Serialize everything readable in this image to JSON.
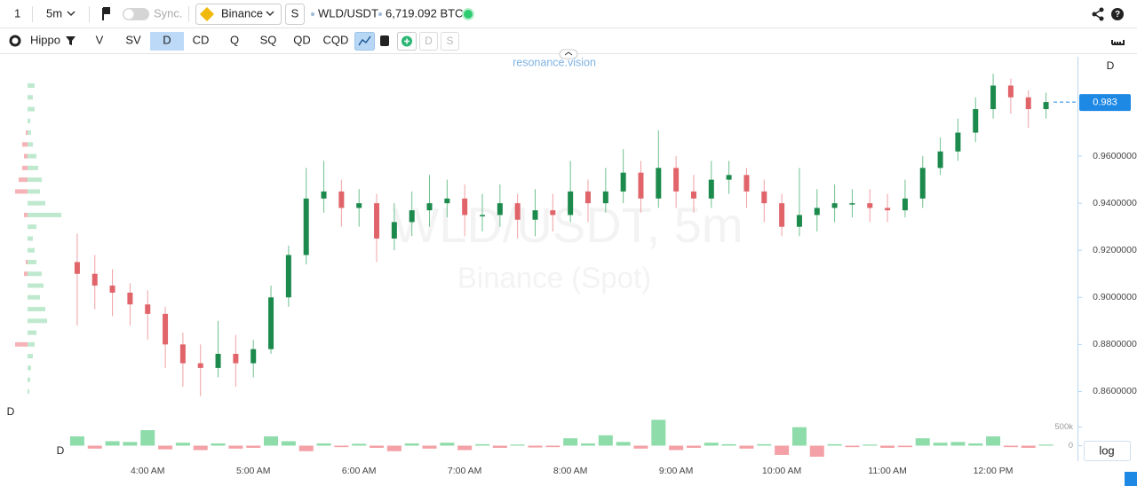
{
  "toolbar": {
    "interval_count": "1",
    "interval": "5m",
    "sync": "Sync.",
    "exchange": "Binance",
    "market_type": "S",
    "symbol": "WLD/USDT",
    "volume": "6,719.092 BTC"
  },
  "indicator_bar": {
    "template": "Hippo",
    "buttons": [
      "V",
      "SV",
      "D",
      "CD",
      "Q",
      "SQ",
      "QD",
      "CQD"
    ],
    "active_button": 2,
    "disabled_buttons": [
      "D",
      "S"
    ]
  },
  "chart_data": {
    "type": "candlestick",
    "watermark_title": "WLD/USDT, 5m",
    "watermark_subtitle": "Binance (Spot)",
    "brand": "resonance.vision",
    "price_axis_label": "D",
    "profile_label": "D",
    "volume_label": "D",
    "scale_button": "log",
    "up_color": "#1b8a4c",
    "down_color": "#e0646a",
    "up_wick": "#6fc08f",
    "down_wick": "#f0a0a4",
    "categories": [
      null,
      null,
      null,
      null,
      "4:00 AM",
      null,
      null,
      null,
      null,
      null,
      "5:00 AM",
      null,
      null,
      null,
      null,
      null,
      "6:00 AM",
      null,
      null,
      null,
      null,
      null,
      "7:00 AM",
      null,
      null,
      null,
      null,
      null,
      "8:00 AM",
      null,
      null,
      null,
      null,
      null,
      "9:00 AM",
      null,
      null,
      null,
      null,
      null,
      "10:00 AM",
      null,
      null,
      null,
      null,
      null,
      "11:00 AM",
      null,
      null,
      null,
      null,
      null,
      "12:00 PM",
      null,
      null,
      null
    ],
    "open": [
      0.915,
      0.91,
      0.905,
      0.902,
      0.897,
      0.893,
      0.88,
      0.872,
      0.87,
      0.876,
      0.872,
      0.878,
      0.9,
      0.918,
      0.942,
      0.945,
      0.938,
      0.94,
      0.925,
      0.932,
      0.937,
      0.94,
      0.942,
      0.935,
      0.935,
      0.94,
      0.933,
      0.937,
      0.935,
      0.945,
      0.94,
      0.945,
      0.953,
      0.942,
      0.955,
      0.945,
      0.942,
      0.95,
      0.952,
      0.945,
      0.94,
      0.93,
      0.935,
      0.938,
      0.94,
      0.94,
      0.938,
      0.937,
      0.942,
      0.955,
      0.962,
      0.97,
      0.98,
      0.99,
      0.985,
      0.98
    ],
    "high": [
      0.927,
      0.918,
      0.912,
      0.906,
      0.903,
      0.896,
      0.885,
      0.88,
      0.89,
      0.884,
      0.882,
      0.905,
      0.922,
      0.955,
      0.958,
      0.95,
      0.946,
      0.944,
      0.94,
      0.945,
      0.952,
      0.95,
      0.948,
      0.944,
      0.948,
      0.944,
      0.946,
      0.944,
      0.958,
      0.95,
      0.955,
      0.963,
      0.958,
      0.971,
      0.96,
      0.952,
      0.958,
      0.958,
      0.955,
      0.95,
      0.944,
      0.955,
      0.946,
      0.948,
      0.946,
      0.946,
      0.944,
      0.95,
      0.96,
      0.968,
      0.976,
      0.985,
      0.995,
      0.993,
      0.988,
      0.987
    ],
    "low": [
      0.888,
      0.895,
      0.892,
      0.888,
      0.882,
      0.87,
      0.862,
      0.858,
      0.866,
      0.862,
      0.866,
      0.876,
      0.896,
      0.914,
      0.936,
      0.93,
      0.93,
      0.915,
      0.92,
      0.926,
      0.93,
      0.934,
      0.926,
      0.928,
      0.93,
      0.925,
      0.926,
      0.928,
      0.932,
      0.932,
      0.936,
      0.94,
      0.936,
      0.938,
      0.938,
      0.936,
      0.938,
      0.944,
      0.938,
      0.932,
      0.926,
      0.926,
      0.928,
      0.932,
      0.934,
      0.932,
      0.932,
      0.934,
      0.938,
      0.952,
      0.958,
      0.966,
      0.976,
      0.978,
      0.972,
      0.976
    ],
    "close": [
      0.91,
      0.905,
      0.902,
      0.897,
      0.893,
      0.88,
      0.872,
      0.87,
      0.876,
      0.872,
      0.878,
      0.9,
      0.918,
      0.942,
      0.945,
      0.938,
      0.94,
      0.925,
      0.932,
      0.937,
      0.94,
      0.942,
      0.935,
      0.935,
      0.94,
      0.933,
      0.937,
      0.935,
      0.945,
      0.94,
      0.945,
      0.953,
      0.942,
      0.955,
      0.945,
      0.942,
      0.95,
      0.952,
      0.945,
      0.94,
      0.93,
      0.935,
      0.938,
      0.94,
      0.94,
      0.938,
      0.937,
      0.942,
      0.955,
      0.962,
      0.97,
      0.98,
      0.99,
      0.985,
      0.98,
      0.983
    ],
    "ylim": [
      0.853,
      1.003
    ],
    "yticks": [
      {
        "value": 0.86,
        "label": "0.8600000"
      },
      {
        "value": 0.88,
        "label": "0.8800000"
      },
      {
        "value": 0.9,
        "label": "0.9000000"
      },
      {
        "value": 0.92,
        "label": "0.9200000"
      },
      {
        "value": 0.94,
        "label": "0.9400000"
      },
      {
        "value": 0.96,
        "label": "0.9600000"
      }
    ],
    "last_price": {
      "value": 0.983,
      "label": "0.983"
    },
    "last_price_color": "#1e88e5",
    "delta_volume": [
      250000,
      -80000,
      120000,
      100000,
      420000,
      -100000,
      80000,
      -120000,
      60000,
      -80000,
      -60000,
      250000,
      120000,
      -150000,
      60000,
      -40000,
      50000,
      -60000,
      -150000,
      60000,
      -80000,
      80000,
      -120000,
      40000,
      -60000,
      30000,
      -50000,
      -40000,
      200000,
      60000,
      280000,
      100000,
      -80000,
      700000,
      -120000,
      -60000,
      80000,
      40000,
      -80000,
      40000,
      -250000,
      500000,
      -300000,
      40000,
      -40000,
      30000,
      -60000,
      -40000,
      200000,
      80000,
      100000,
      60000,
      250000,
      -40000,
      -60000,
      30000
    ],
    "vlim": [
      -300000,
      900000
    ],
    "vticks": [
      0,
      {
        "value": 500000,
        "label": "500k"
      }
    ],
    "volume_up_color": "#8fdcab",
    "volume_down_color": "#f3a1a6",
    "profile_prices": [
      0.86,
      0.865,
      0.87,
      0.875,
      0.88,
      0.885,
      0.89,
      0.895,
      0.9,
      0.905,
      0.91,
      0.915,
      0.92,
      0.925,
      0.93,
      0.935,
      0.94,
      0.945,
      0.95,
      0.955,
      0.96,
      0.965,
      0.97,
      0.975,
      0.98,
      0.985,
      0.99
    ],
    "profile_buy": [
      2,
      3,
      4,
      6,
      8,
      10,
      22,
      20,
      14,
      18,
      16,
      10,
      8,
      6,
      10,
      38,
      20,
      14,
      16,
      12,
      10,
      6,
      4,
      3,
      8,
      6,
      8
    ],
    "profile_sell": [
      0,
      0,
      0,
      0,
      14,
      0,
      0,
      0,
      0,
      0,
      4,
      2,
      0,
      0,
      0,
      4,
      0,
      14,
      10,
      6,
      4,
      6,
      2,
      0,
      0,
      0,
      0
    ],
    "profile_buy_color": "#bfe9cf",
    "profile_sell_color": "#f5b3b7"
  }
}
